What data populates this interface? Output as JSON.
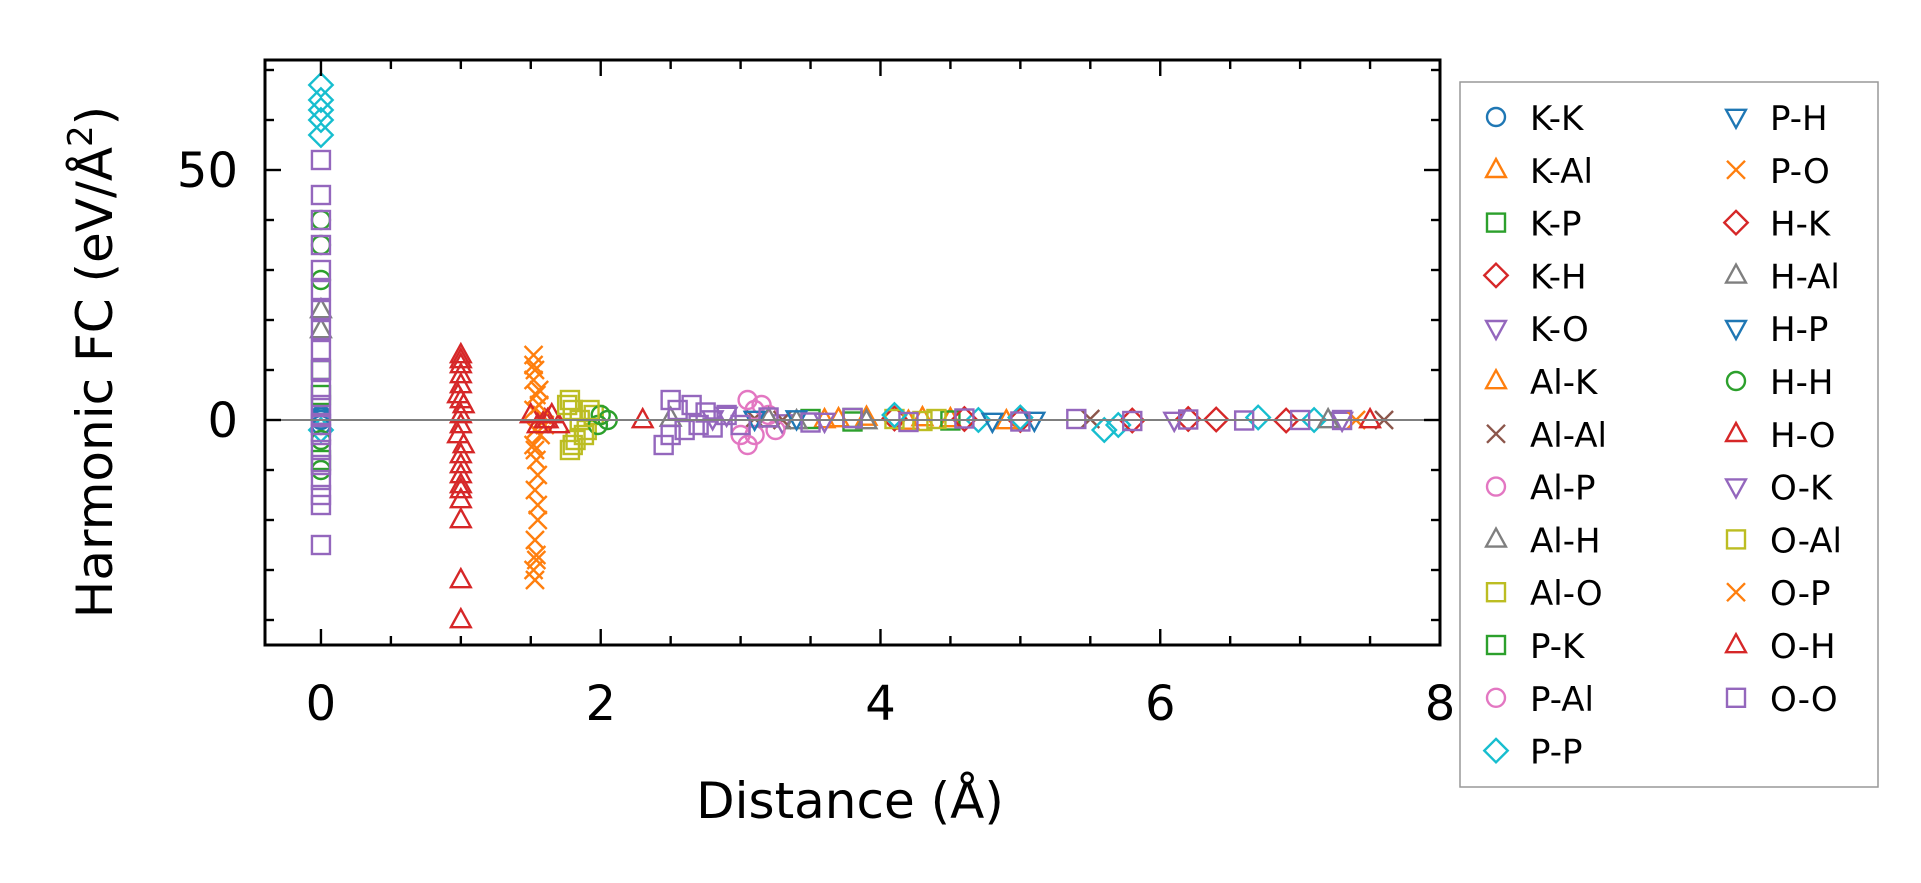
{
  "chart_data": {
    "type": "scatter",
    "title": "",
    "xlabel": "Distance (Å)",
    "ylabel_main": "Harmonic FC (eV/Å",
    "ylabel_sup": "2",
    "ylabel_close": ")",
    "xlim": [
      -0.4,
      8.0
    ],
    "ylim": [
      -45,
      72
    ],
    "xticks": [
      0,
      2,
      4,
      6,
      8
    ],
    "xtick_labels": [
      "0",
      "2",
      "4",
      "6",
      "8"
    ],
    "yticks": [
      0,
      50
    ],
    "ytick_labels": [
      "0",
      "50"
    ],
    "grid": false,
    "legend_position": "outside-right",
    "zero_line": true,
    "series": [
      {
        "name": "K-K",
        "marker": "circle",
        "color": "#1f77b4",
        "points": [
          [
            0.0,
            0.0
          ],
          [
            0.0,
            1.0
          ],
          [
            0.0,
            -1.0
          ],
          [
            0.0,
            0.5
          ]
        ]
      },
      {
        "name": "K-Al",
        "marker": "triangle-up",
        "color": "#ff7f0e",
        "points": [
          [
            3.6,
            0.0
          ],
          [
            3.9,
            0.5
          ],
          [
            4.2,
            -0.3
          ],
          [
            4.5,
            0.2
          ]
        ]
      },
      {
        "name": "K-P",
        "marker": "square",
        "color": "#2ca02c",
        "points": [
          [
            0.0,
            10.0
          ],
          [
            0.0,
            -8.0
          ],
          [
            0.0,
            5.0
          ],
          [
            3.5,
            0.2
          ],
          [
            3.8,
            -0.3
          ]
        ]
      },
      {
        "name": "K-H",
        "marker": "diamond",
        "color": "#d62728",
        "points": [
          [
            4.1,
            0.3
          ],
          [
            5.0,
            0.0
          ],
          [
            6.2,
            0.2
          ],
          [
            6.9,
            -0.1
          ]
        ]
      },
      {
        "name": "K-O",
        "marker": "triangle-down",
        "color": "#9467bd",
        "points": [
          [
            2.9,
            1.0
          ],
          [
            3.3,
            -0.5
          ],
          [
            7.3,
            0.0
          ]
        ]
      },
      {
        "name": "Al-K",
        "marker": "triangle-up",
        "color": "#ff7f0e",
        "points": [
          [
            3.7,
            0.2
          ],
          [
            4.3,
            0.4
          ],
          [
            4.9,
            -0.2
          ]
        ]
      },
      {
        "name": "Al-Al",
        "marker": "x",
        "color": "#8c564b",
        "points": [
          [
            3.1,
            0.3
          ],
          [
            3.3,
            0.0
          ],
          [
            5.5,
            0.2
          ],
          [
            7.6,
            0.0
          ]
        ]
      },
      {
        "name": "Al-P",
        "marker": "circle",
        "color": "#e377c2",
        "points": [
          [
            3.05,
            4.0
          ],
          [
            3.05,
            -5.0
          ],
          [
            3.1,
            2.0
          ],
          [
            3.1,
            -3.0
          ],
          [
            3.2,
            1.0
          ],
          [
            3.25,
            -2.0
          ]
        ]
      },
      {
        "name": "Al-H",
        "marker": "triangle-up",
        "color": "#7f7f7f",
        "points": [
          [
            0.0,
            18.0
          ],
          [
            0.0,
            22.0
          ],
          [
            2.5,
            0.3
          ],
          [
            3.4,
            -0.2
          ]
        ]
      },
      {
        "name": "Al-O",
        "marker": "square",
        "color": "#bcbd22",
        "points": [
          [
            1.78,
            -6.0
          ],
          [
            1.78,
            4.0
          ],
          [
            1.8,
            2.0
          ],
          [
            1.82,
            -4.0
          ],
          [
            1.85,
            0.0
          ],
          [
            1.9,
            -2.0
          ],
          [
            1.95,
            1.0
          ],
          [
            4.1,
            0.2
          ],
          [
            4.3,
            -0.2
          ]
        ]
      },
      {
        "name": "P-K",
        "marker": "square",
        "color": "#2ca02c",
        "points": [
          [
            3.8,
            0.4
          ],
          [
            4.5,
            -0.1
          ]
        ]
      },
      {
        "name": "P-Al",
        "marker": "circle",
        "color": "#e377c2",
        "points": [
          [
            3.0,
            -3.0
          ],
          [
            3.15,
            3.0
          ]
        ]
      },
      {
        "name": "P-P",
        "marker": "diamond",
        "color": "#17becf",
        "points": [
          [
            0.0,
            67.0
          ],
          [
            0.0,
            64.0
          ],
          [
            0.0,
            62.0
          ],
          [
            0.0,
            60.0
          ],
          [
            0.0,
            57.0
          ],
          [
            0.0,
            -2.0
          ],
          [
            4.1,
            1.0
          ],
          [
            4.7,
            0.0
          ],
          [
            5.0,
            0.5
          ],
          [
            5.6,
            -2.0
          ],
          [
            5.7,
            -1.0
          ],
          [
            6.7,
            0.5
          ],
          [
            7.1,
            0.0
          ]
        ]
      },
      {
        "name": "P-H",
        "marker": "triangle-down",
        "color": "#1f77b4",
        "points": [
          [
            3.4,
            0.3
          ],
          [
            5.1,
            0.0
          ]
        ]
      },
      {
        "name": "P-O",
        "marker": "x",
        "color": "#ff7f0e",
        "points": [
          [
            1.52,
            13.0
          ],
          [
            1.53,
            10.0
          ],
          [
            1.52,
            8.0
          ],
          [
            1.54,
            5.0
          ],
          [
            1.52,
            2.0
          ],
          [
            1.53,
            -2.0
          ],
          [
            1.52,
            -5.0
          ],
          [
            1.54,
            -8.0
          ],
          [
            1.55,
            -11.0
          ],
          [
            1.53,
            -14.0
          ],
          [
            1.55,
            -20.0
          ],
          [
            1.53,
            -24.0
          ],
          [
            1.54,
            -27.0
          ],
          [
            1.52,
            -30.0
          ],
          [
            1.53,
            -32.0
          ],
          [
            1.56,
            6.0
          ],
          [
            1.57,
            -3.0
          ],
          [
            1.58,
            1.0
          ],
          [
            1.6,
            -1.0
          ],
          [
            7.4,
            0.0
          ]
        ]
      },
      {
        "name": "H-K",
        "marker": "diamond",
        "color": "#d62728",
        "points": [
          [
            4.6,
            0.2
          ],
          [
            5.8,
            -0.1
          ],
          [
            6.4,
            0.1
          ]
        ]
      },
      {
        "name": "H-Al",
        "marker": "triangle-up",
        "color": "#7f7f7f",
        "points": [
          [
            3.2,
            0.2
          ],
          [
            3.9,
            -0.2
          ],
          [
            7.2,
            0.0
          ]
        ]
      },
      {
        "name": "H-P",
        "marker": "triangle-down",
        "color": "#1f77b4",
        "points": [
          [
            3.1,
            0.2
          ],
          [
            4.8,
            -0.2
          ]
        ]
      },
      {
        "name": "H-H",
        "marker": "circle",
        "color": "#2ca02c",
        "points": [
          [
            0.0,
            40.0
          ],
          [
            0.0,
            35.0
          ],
          [
            0.0,
            28.0
          ],
          [
            0.0,
            -4.0
          ],
          [
            0.0,
            -10.0
          ],
          [
            2.05,
            0.0
          ],
          [
            1.98,
            -1.0
          ],
          [
            2.0,
            1.0
          ]
        ]
      },
      {
        "name": "H-O",
        "marker": "triangle-up",
        "color": "#d62728",
        "points": [
          [
            1.0,
            13.0
          ],
          [
            1.0,
            11.0
          ],
          [
            1.0,
            9.0
          ],
          [
            1.0,
            7.0
          ],
          [
            0.98,
            5.0
          ],
          [
            1.02,
            3.0
          ],
          [
            1.0,
            1.0
          ],
          [
            1.0,
            -1.0
          ],
          [
            0.98,
            -3.0
          ],
          [
            1.02,
            -5.0
          ],
          [
            1.0,
            -7.0
          ],
          [
            1.0,
            -9.0
          ],
          [
            1.0,
            -11.0
          ],
          [
            1.0,
            -14.0
          ],
          [
            1.0,
            -16.0
          ],
          [
            1.0,
            -20.0
          ],
          [
            1.0,
            -32.0
          ],
          [
            1.0,
            -40.0
          ],
          [
            1.5,
            1.0
          ],
          [
            1.55,
            -1.0
          ],
          [
            1.6,
            0.0
          ],
          [
            1.65,
            1.0
          ],
          [
            1.7,
            -1.0
          ],
          [
            2.3,
            0.0
          ],
          [
            7.5,
            0.0
          ]
        ]
      },
      {
        "name": "O-K",
        "marker": "triangle-down",
        "color": "#9467bd",
        "points": [
          [
            2.8,
            0.3
          ],
          [
            3.6,
            -0.2
          ],
          [
            6.1,
            0.0
          ]
        ]
      },
      {
        "name": "O-Al",
        "marker": "square",
        "color": "#bcbd22",
        "points": [
          [
            1.76,
            3.0
          ],
          [
            1.8,
            -5.0
          ],
          [
            1.88,
            -3.0
          ],
          [
            1.92,
            2.0
          ],
          [
            4.4,
            0.2
          ]
        ]
      },
      {
        "name": "O-P",
        "marker": "x",
        "color": "#ff7f0e",
        "points": [
          [
            1.52,
            11.0
          ],
          [
            1.53,
            -6.0
          ],
          [
            1.55,
            -17.0
          ],
          [
            1.54,
            -28.0
          ],
          [
            1.56,
            3.0
          ]
        ]
      },
      {
        "name": "O-H",
        "marker": "triangle-up",
        "color": "#d62728",
        "points": [
          [
            1.0,
            12.0
          ],
          [
            1.0,
            -13.0
          ],
          [
            1.0,
            4.0
          ],
          [
            1.62,
            0.0
          ]
        ]
      },
      {
        "name": "O-O",
        "marker": "square",
        "color": "#9467bd",
        "points": [
          [
            0.0,
            52.0
          ],
          [
            0.0,
            45.0
          ],
          [
            0.0,
            40.0
          ],
          [
            0.0,
            35.0
          ],
          [
            0.0,
            30.0
          ],
          [
            0.0,
            26.0
          ],
          [
            0.0,
            22.0
          ],
          [
            0.0,
            18.0
          ],
          [
            0.0,
            14.0
          ],
          [
            0.0,
            10.0
          ],
          [
            0.0,
            6.0
          ],
          [
            0.0,
            3.0
          ],
          [
            0.0,
            1.0
          ],
          [
            0.0,
            -1.0
          ],
          [
            0.0,
            -3.0
          ],
          [
            0.0,
            -6.0
          ],
          [
            0.0,
            -9.0
          ],
          [
            0.0,
            -12.0
          ],
          [
            0.0,
            -15.0
          ],
          [
            0.0,
            -17.0
          ],
          [
            0.0,
            -25.0
          ],
          [
            2.45,
            -5.0
          ],
          [
            2.5,
            4.0
          ],
          [
            2.5,
            -3.0
          ],
          [
            2.55,
            2.0
          ],
          [
            2.6,
            -2.0
          ],
          [
            2.65,
            3.0
          ],
          [
            2.7,
            -1.0
          ],
          [
            2.75,
            1.5
          ],
          [
            2.8,
            -1.5
          ],
          [
            2.9,
            1.0
          ],
          [
            3.0,
            -1.0
          ],
          [
            3.2,
            0.5
          ],
          [
            3.5,
            -0.5
          ],
          [
            3.8,
            0.4
          ],
          [
            4.2,
            -0.4
          ],
          [
            4.6,
            0.3
          ],
          [
            5.0,
            -0.3
          ],
          [
            5.4,
            0.2
          ],
          [
            5.8,
            -0.2
          ],
          [
            6.2,
            0.1
          ],
          [
            6.6,
            -0.1
          ],
          [
            7.0,
            0.0
          ],
          [
            7.3,
            0.0
          ]
        ]
      }
    ]
  }
}
